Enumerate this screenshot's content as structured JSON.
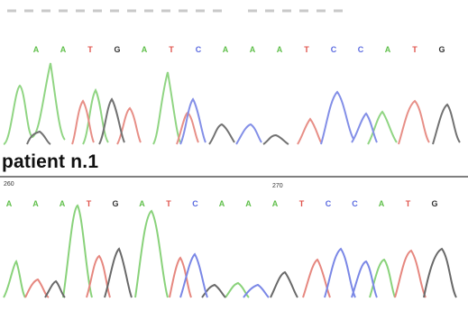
{
  "colors": {
    "A": "#5fbf4a",
    "T": "#e0524a",
    "G": "#333333",
    "C": "#5a6ae0"
  },
  "panels": [
    {
      "label": "",
      "sequence": [
        "A",
        "A",
        "T",
        "G",
        "A",
        "T",
        "C",
        "A",
        "A",
        "A",
        "T",
        "C",
        "C",
        "A",
        "T",
        "G"
      ]
    },
    {
      "label": "patient n.1",
      "positions": [
        "260",
        "270"
      ],
      "sequence": [
        "A",
        "A",
        "A",
        "T",
        "G",
        "A",
        "T",
        "C",
        "A",
        "A",
        "A",
        "T",
        "C",
        "C",
        "A",
        "T",
        "G"
      ]
    }
  ]
}
